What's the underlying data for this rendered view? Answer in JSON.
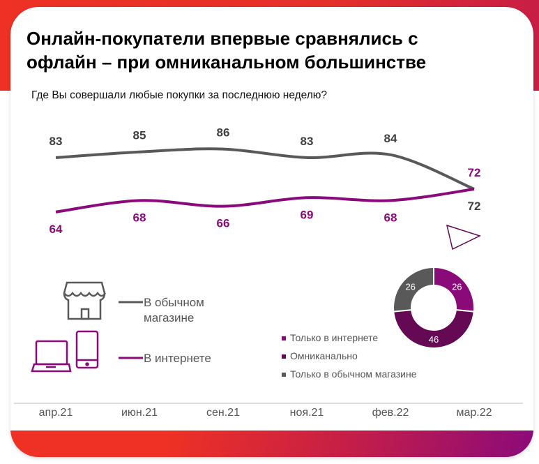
{
  "title_line1": "Онлайн-покупатели впервые сравнялись с",
  "title_line2": "офлайн – при омниканальном большинстве",
  "subtitle": "Где Вы совершали любые покупки за последнюю неделю?",
  "colors": {
    "offline": "#595959",
    "online": "#8b0a7a",
    "omni": "#650955",
    "accent": "#ee3124"
  },
  "legend": {
    "offline_line1": "В обычном",
    "offline_line2": "магазине",
    "online": "В интернете"
  },
  "chart_data": [
    {
      "type": "line",
      "title": "Где Вы совершали любые покупки за последнюю неделю?",
      "categories": [
        "апр.21",
        "июн.21",
        "сен.21",
        "ноя.21",
        "фев.22",
        "мар.22"
      ],
      "series": [
        {
          "name": "В обычном магазине",
          "values": [
            83,
            85,
            86,
            83,
            84,
            72
          ],
          "labels": [
            "83",
            "85",
            "86",
            "83",
            "84",
            "72"
          ]
        },
        {
          "name": "В интернете",
          "values": [
            64,
            68,
            66,
            69,
            68,
            72
          ],
          "labels": [
            "64",
            "68",
            "66",
            "69",
            "68",
            "72"
          ]
        }
      ]
    },
    {
      "type": "pie",
      "slices": [
        {
          "name": "Только в интернете",
          "value": 26,
          "label": "26"
        },
        {
          "name": "Омниканально",
          "value": 46,
          "label": "46"
        },
        {
          "name": "Только в обычном магазине",
          "value": 26,
          "label": "26"
        }
      ]
    }
  ]
}
